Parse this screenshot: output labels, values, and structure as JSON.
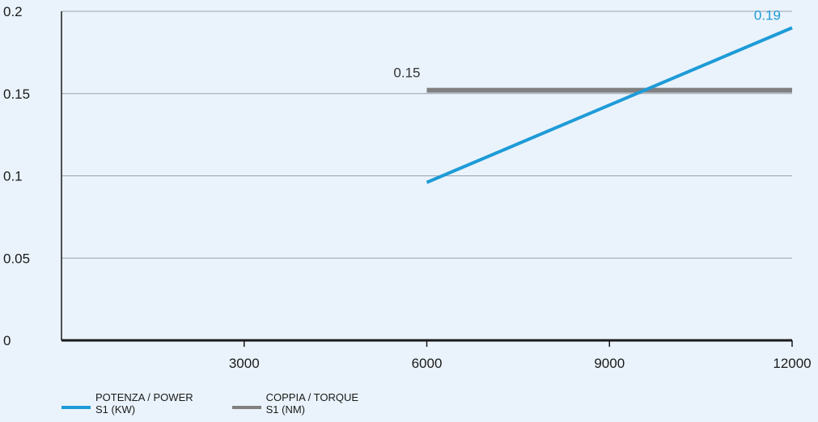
{
  "chart_data": {
    "type": "line",
    "title": "",
    "xlabel": "",
    "ylabel": "",
    "xlim": [
      0,
      12000
    ],
    "ylim": [
      0,
      0.2
    ],
    "x_ticks": [
      3000,
      6000,
      9000,
      12000
    ],
    "x_tick_labels": [
      "3000",
      "6000",
      "9000",
      "12000"
    ],
    "y_ticks": [
      0,
      0.05,
      0.1,
      0.15,
      0.2
    ],
    "y_tick_labels": [
      "0",
      "0.05",
      "0.1",
      "0.15",
      "0.2"
    ],
    "grid": "horizontal",
    "legend_position": "bottom-left",
    "series": [
      {
        "name": "POTENZA / POWER\nS1 (KW)",
        "color": "#1e9bd7",
        "x": [
          6000,
          12000
        ],
        "y": [
          0.096,
          0.19
        ],
        "end_label": "0.19"
      },
      {
        "name": "COPPIA / TORQUE\nS1 (NM)",
        "color": "#808080",
        "x": [
          6000,
          12000
        ],
        "y": [
          0.152,
          0.152
        ],
        "start_label": "0.15"
      }
    ]
  },
  "colors": {
    "background": "#eaf3fb",
    "grid": "#9aa3ab",
    "axis": "#1a1a1a"
  }
}
